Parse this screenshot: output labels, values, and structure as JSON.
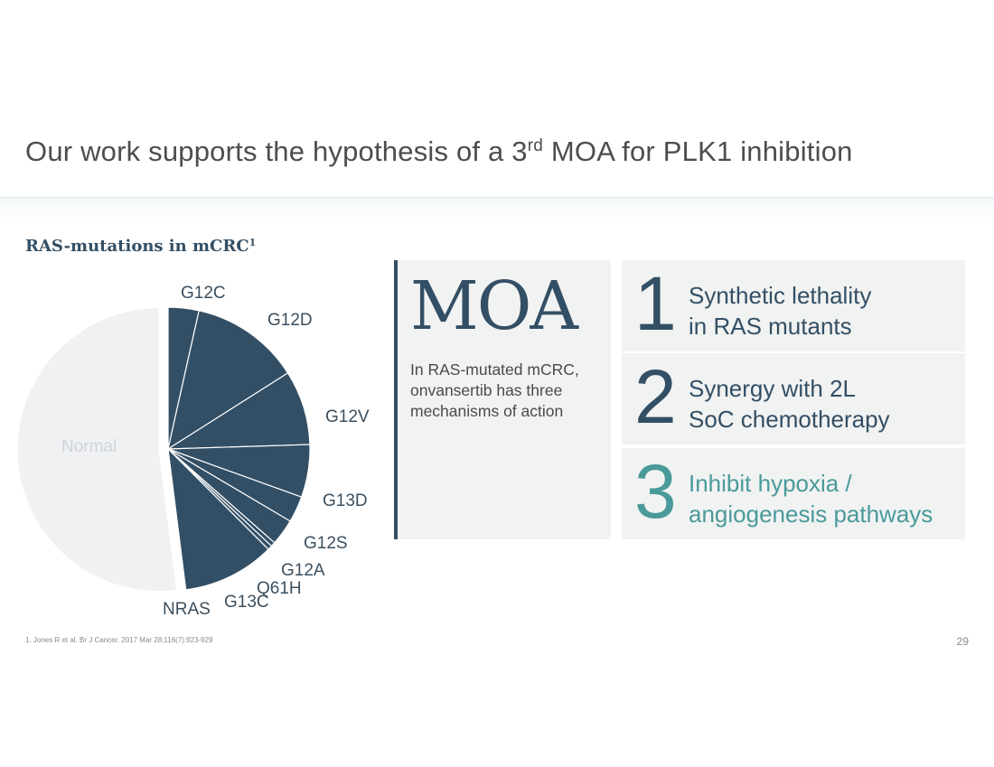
{
  "slide": {
    "title_before": "Our work supports the hypothesis of a 3",
    "title_sup": "rd",
    "title_after": " MOA for PLK1 inhibition",
    "footnote": "1. Jones R et al. Br J Cancer. 2017 Mar 28;116(7):923-929",
    "page_number": "29"
  },
  "chart_data": {
    "type": "pie",
    "title": "RAS-mutations in mCRC",
    "title_sup": "1",
    "start_angle_deg": 0,
    "direction": "clockwise",
    "exploded_slice": "Normal",
    "colors": {
      "mutation": "#334f65",
      "normal": "#f0f1f2",
      "normal_label": "#cfd4d8",
      "label": "#3b4f5f"
    },
    "slices": [
      {
        "label": "G12C",
        "value": 3.5
      },
      {
        "label": "G12D",
        "value": 12.5
      },
      {
        "label": "G12V",
        "value": 8.5
      },
      {
        "label": "G13D",
        "value": 6.0
      },
      {
        "label": "G12S",
        "value": 3.0
      },
      {
        "label": "G12A",
        "value": 3.0
      },
      {
        "label": "Q61H",
        "value": 0.5
      },
      {
        "label": "G13C",
        "value": 0.5
      },
      {
        "label": "NRAS",
        "value": 10.5
      },
      {
        "label": "Normal",
        "value": 52.0
      }
    ]
  },
  "moa": {
    "word": "MOA",
    "text": "In RAS-mutated mCRC, onvansertib has three mechanisms of action"
  },
  "mechanisms": [
    {
      "number": "1",
      "line1": "Synthetic lethality",
      "line2": "in RAS mutants",
      "highlight": false
    },
    {
      "number": "2",
      "line1": "Synergy with 2L",
      "line2": "SoC chemotherapy",
      "highlight": false
    },
    {
      "number": "3",
      "line1": "Inhibit hypoxia /",
      "line2": "angiogenesis pathways",
      "highlight": true,
      "color": "#4a9a9a"
    }
  ]
}
